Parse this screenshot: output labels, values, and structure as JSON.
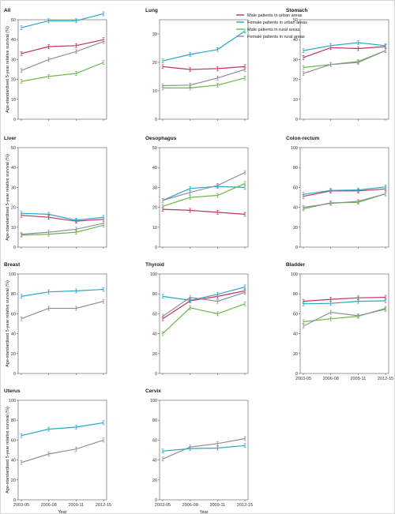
{
  "chart_data": [
    {
      "type": "line",
      "title": "All",
      "ylabel": "Age-standardised 5-year relative survival (%)",
      "ylim": [
        0,
        100
      ],
      "yticks": [
        0,
        10,
        20,
        30,
        40,
        50
      ],
      "ymax_shown": 50,
      "categories": [
        "2003-05",
        "2006-08",
        "2009-11",
        "2012-15"
      ],
      "show_xticks": false,
      "series": [
        {
          "name": "Male patients in urban areas",
          "values": [
            33,
            36.5,
            37,
            40
          ]
        },
        {
          "name": "Female patients in urban areas",
          "values": [
            46,
            49.5,
            49.5,
            53
          ]
        },
        {
          "name": "Male patients in rural areas",
          "values": [
            19,
            21.5,
            23,
            28.5
          ]
        },
        {
          "name": "Female patients in rural areas",
          "values": [
            24.5,
            30,
            34,
            39
          ]
        }
      ]
    },
    {
      "type": "line",
      "title": "Lung",
      "ylim": [
        0,
        35
      ],
      "yticks": [
        0,
        10,
        20,
        30
      ],
      "categories": [
        "2003-05",
        "2006-08",
        "2009-11",
        "2012-15"
      ],
      "show_xticks": false,
      "series": [
        {
          "name": "Male patients in urban areas",
          "values": [
            18.5,
            17.5,
            17.8,
            18.5
          ]
        },
        {
          "name": "Female patients in urban areas",
          "values": [
            20.5,
            22.8,
            24.5,
            31
          ]
        },
        {
          "name": "Male patients in rural areas",
          "values": [
            11,
            11,
            12,
            14.5
          ]
        },
        {
          "name": "Female patients in rural areas",
          "values": [
            11.8,
            12,
            14.5,
            17.5
          ]
        }
      ]
    },
    {
      "type": "line",
      "title": "Stomach",
      "ylim": [
        0,
        50
      ],
      "yticks": [
        0,
        10,
        20,
        30,
        40,
        50
      ],
      "categories": [
        "2003-05",
        "2006-08",
        "2009-11",
        "2012-15"
      ],
      "show_xticks": false,
      "series": [
        {
          "name": "Male patients in urban areas",
          "values": [
            31,
            36,
            35.5,
            36.5
          ]
        },
        {
          "name": "Female patients in urban areas",
          "values": [
            34.5,
            37,
            38.5,
            37
          ]
        },
        {
          "name": "Male patients in rural areas",
          "values": [
            26,
            27.5,
            29,
            34.5
          ]
        },
        {
          "name": "Female patients in rural areas",
          "values": [
            23,
            27.5,
            28.5,
            34.5
          ]
        }
      ]
    },
    {
      "type": "line",
      "title": "Liver",
      "ylabel": "Age-standardised 5-year relative survival (%)",
      "ylim": [
        0,
        50
      ],
      "yticks": [
        0,
        10,
        20,
        30,
        40,
        50
      ],
      "categories": [
        "2003-05",
        "2006-08",
        "2009-11",
        "2012-15"
      ],
      "show_xticks": false,
      "series": [
        {
          "name": "Male patients in urban areas",
          "values": [
            16,
            15,
            13,
            14
          ]
        },
        {
          "name": "Female patients in urban areas",
          "values": [
            17,
            16.5,
            13.5,
            15
          ]
        },
        {
          "name": "Male patients in rural areas",
          "values": [
            6,
            6.5,
            7.5,
            11
          ]
        },
        {
          "name": "Female patients in rural areas",
          "values": [
            6.5,
            7.5,
            9,
            12
          ]
        }
      ]
    },
    {
      "type": "line",
      "title": "Oesophagus",
      "ylim": [
        0,
        50
      ],
      "yticks": [
        0,
        10,
        20,
        30,
        40,
        50
      ],
      "categories": [
        "2003-05",
        "2006-08",
        "2009-11",
        "2012-15"
      ],
      "show_xticks": false,
      "series": [
        {
          "name": "Male patients in urban areas",
          "values": [
            19,
            18.5,
            17.5,
            16.5
          ]
        },
        {
          "name": "Female patients in urban areas",
          "values": [
            23.5,
            29.5,
            30.5,
            30
          ]
        },
        {
          "name": "Male patients in rural areas",
          "values": [
            20.5,
            25,
            26,
            32
          ]
        },
        {
          "name": "Female patients in rural areas",
          "values": [
            23.5,
            27.5,
            31,
            37.5
          ]
        }
      ]
    },
    {
      "type": "line",
      "title": "Colon-rectum",
      "ylim": [
        0,
        100
      ],
      "yticks": [
        0,
        20,
        40,
        60,
        80,
        100
      ],
      "categories": [
        "2003-05",
        "2006-08",
        "2009-11",
        "2012-15"
      ],
      "show_xticks": false,
      "series": [
        {
          "name": "Male patients in urban areas",
          "values": [
            51,
            56.5,
            56.5,
            58.5
          ]
        },
        {
          "name": "Female patients in urban areas",
          "values": [
            53,
            57,
            57.5,
            60.5
          ]
        },
        {
          "name": "Male patients in rural areas",
          "values": [
            38.5,
            44.5,
            45,
            53.5
          ]
        },
        {
          "name": "Female patients in rural areas",
          "values": [
            40,
            44,
            46,
            53.5
          ]
        }
      ]
    },
    {
      "type": "line",
      "title": "Breast",
      "ylabel": "Age-standardised 5-year relative survival (%)",
      "ylim": [
        0,
        100
      ],
      "yticks": [
        0,
        20,
        40,
        60,
        80,
        100
      ],
      "categories": [
        "2003-05",
        "2006-08",
        "2009-11",
        "2012-15"
      ],
      "show_xticks": false,
      "series": [
        {
          "name": "Female patients in urban areas",
          "values": [
            77.5,
            82,
            83,
            84.5
          ]
        },
        {
          "name": "Female patients in rural areas",
          "values": [
            55,
            65.5,
            65.5,
            72.5
          ]
        }
      ]
    },
    {
      "type": "line",
      "title": "Thyroid",
      "ylim": [
        0,
        100
      ],
      "yticks": [
        0,
        20,
        40,
        60,
        80,
        100
      ],
      "categories": [
        "2003-05",
        "2006-08",
        "2009-11",
        "2012-15"
      ],
      "show_xticks": false,
      "series": [
        {
          "name": "Male patients in urban areas",
          "values": [
            55,
            73,
            77.5,
            83
          ]
        },
        {
          "name": "Female patients in urban areas",
          "values": [
            77.5,
            73.5,
            79.5,
            87
          ]
        },
        {
          "name": "Male patients in rural areas",
          "values": [
            40,
            66,
            60,
            70
          ]
        },
        {
          "name": "Female patients in rural areas",
          "values": [
            57.5,
            76.5,
            72.5,
            81.5
          ]
        }
      ]
    },
    {
      "type": "line",
      "title": "Bladder",
      "ylim": [
        0,
        100
      ],
      "yticks": [
        0,
        20,
        40,
        60,
        80,
        100
      ],
      "categories": [
        "2003-05",
        "2006-08",
        "2009-11",
        "2012-15"
      ],
      "show_xticks": true,
      "series": [
        {
          "name": "Male patients in urban areas",
          "values": [
            72.5,
            74.5,
            76,
            76.5
          ]
        },
        {
          "name": "Female patients in urban areas",
          "values": [
            70,
            70.5,
            72.5,
            73
          ]
        },
        {
          "name": "Male patients in rural areas",
          "values": [
            52,
            55,
            57.5,
            65.5
          ]
        },
        {
          "name": "Female patients in rural areas",
          "values": [
            47.5,
            61.5,
            58,
            64.5
          ]
        }
      ]
    },
    {
      "type": "line",
      "title": "Uterus",
      "ylabel": "Age-standardised 5-year relative survival (%)",
      "xlabel": "Year",
      "ylim": [
        0,
        100
      ],
      "yticks": [
        0,
        20,
        40,
        60,
        80,
        100
      ],
      "categories": [
        "2003-05",
        "2006-08",
        "2009-11",
        "2012-15"
      ],
      "show_xticks": true,
      "series": [
        {
          "name": "Female patients in urban areas",
          "values": [
            64.5,
            71,
            73,
            77.5
          ]
        },
        {
          "name": "Female patients in rural areas",
          "values": [
            37.5,
            46,
            51,
            60
          ]
        }
      ]
    },
    {
      "type": "line",
      "title": "Cervix",
      "xlabel": "Year",
      "ylim": [
        0,
        100
      ],
      "yticks": [
        0,
        20,
        40,
        60,
        80,
        100
      ],
      "categories": [
        "2003-05",
        "2006-08",
        "2009-11",
        "2012-15"
      ],
      "show_xticks": true,
      "series": [
        {
          "name": "Female patients in urban areas",
          "values": [
            49,
            51.5,
            52,
            54.5
          ]
        },
        {
          "name": "Female patients in rural areas",
          "values": [
            41,
            53,
            56.5,
            61.5
          ]
        }
      ]
    }
  ],
  "legend": {
    "placement": "top, inside the Lung panel",
    "items": [
      {
        "label": "Male patients in urban areas",
        "color": "#c0345e"
      },
      {
        "label": "Female patients in urban areas",
        "color": "#2aa6c9"
      },
      {
        "label": "Male patients in rural areas",
        "color": "#6ab84a"
      },
      {
        "label": "Female patients in rural areas",
        "color": "#8f8f9a"
      }
    ]
  }
}
